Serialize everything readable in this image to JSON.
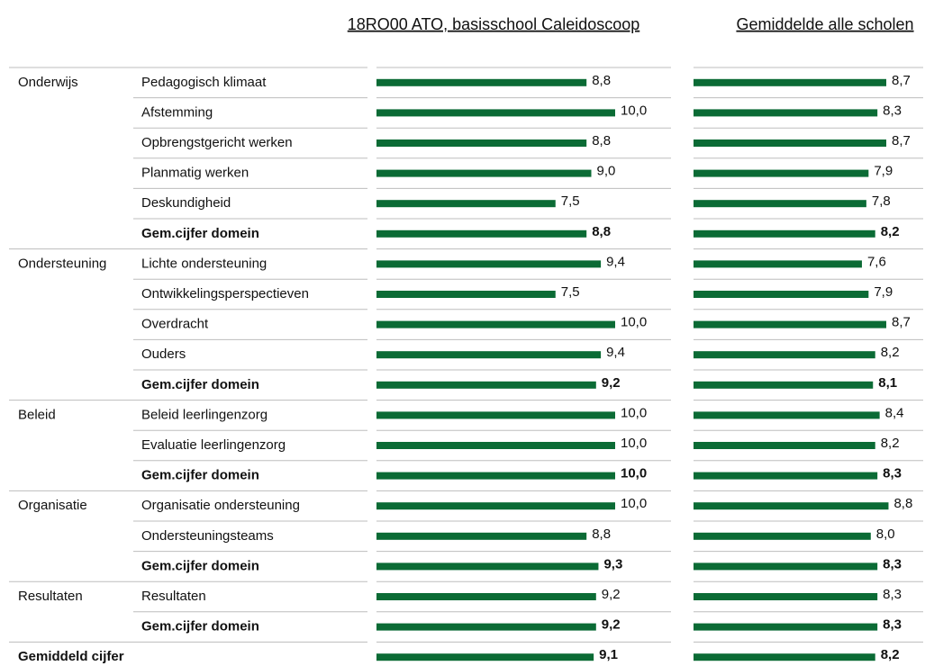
{
  "chart_data": {
    "type": "bar",
    "domains": [
      "Onderwijs",
      null,
      null,
      null,
      null,
      null,
      "Ondersteuning",
      null,
      null,
      null,
      null,
      "Beleid",
      null,
      null,
      "Organisatie",
      null,
      null,
      "Resultaten",
      null,
      "Gemiddeld cijfer"
    ],
    "categories": [
      "Pedagogisch klimaat",
      "Afstemming",
      "Opbrengstgericht werken",
      "Planmatig werken",
      "Deskundigheid",
      "Gem.cijfer domein",
      "Lichte ondersteuning",
      "Ontwikkelingsperspectieven",
      "Overdracht",
      "Ouders",
      "Gem.cijfer domein",
      "Beleid leerlingenzorg",
      "Evaluatie leerlingenzorg",
      "Gem.cijfer domein",
      "Organisatie ondersteuning",
      "Ondersteuningsteams",
      "Gem.cijfer domein",
      "Resultaten",
      "Gem.cijfer domein",
      null
    ],
    "bold_rows": [
      5,
      10,
      13,
      16,
      18,
      19
    ],
    "xlim": [
      0,
      10
    ],
    "series": [
      {
        "name": "18RO00 ATO, basisschool Caleidoscoop",
        "color": "#0b6b35",
        "values": [
          8.8,
          10.0,
          8.8,
          9.0,
          7.5,
          8.8,
          9.4,
          7.5,
          10.0,
          9.4,
          9.2,
          10.0,
          10.0,
          10.0,
          10.0,
          8.8,
          9.3,
          9.2,
          9.2,
          9.1
        ],
        "value_labels": [
          "8,8",
          "10,0",
          "8,8",
          "9,0",
          "7,5",
          "8,8",
          "9,4",
          "7,5",
          "10,0",
          "9,4",
          "9,2",
          "10,0",
          "10,0",
          "10,0",
          "10,0",
          "8,8",
          "9,3",
          "9,2",
          "9,2",
          "9,1"
        ]
      },
      {
        "name": "Gemiddelde alle scholen",
        "color": "#0b6b35",
        "values": [
          8.7,
          8.3,
          8.7,
          7.9,
          7.8,
          8.2,
          7.6,
          7.9,
          8.7,
          8.2,
          8.1,
          8.4,
          8.2,
          8.3,
          8.8,
          8.0,
          8.3,
          8.3,
          8.3,
          8.2
        ],
        "value_labels": [
          "8,7",
          "8,3",
          "8,7",
          "7,9",
          "7,8",
          "8,2",
          "7,6",
          "7,9",
          "8,7",
          "8,2",
          "8,1",
          "8,4",
          "8,2",
          "8,3",
          "8,8",
          "8,0",
          "8,3",
          "8,3",
          "8,3",
          "8,2"
        ]
      }
    ]
  }
}
